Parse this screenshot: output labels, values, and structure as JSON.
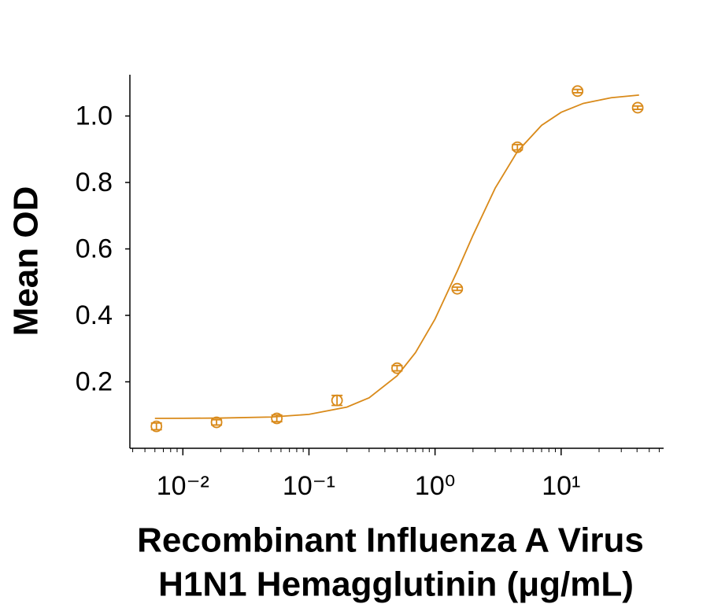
{
  "chart_data": {
    "type": "scatter",
    "xlabel": [
      "Recombinant Influenza A Virus",
      "H1N1 Hemagglutinin (μg/mL)"
    ],
    "ylabel": "Mean OD",
    "xscale": "log",
    "xlim": [
      0.0038,
      65
    ],
    "ylim": [
      0,
      1.12
    ],
    "xticks": [
      {
        "value": 0.01,
        "label": "10⁻²"
      },
      {
        "value": 0.1,
        "label": "10⁻¹"
      },
      {
        "value": 1,
        "label": "10⁰"
      },
      {
        "value": 10,
        "label": "10¹"
      }
    ],
    "xminorticks": [
      0.004,
      0.005,
      0.006,
      0.007,
      0.008,
      0.009,
      0.02,
      0.03,
      0.04,
      0.05,
      0.06,
      0.07,
      0.08,
      0.09,
      0.2,
      0.3,
      0.4,
      0.5,
      0.6,
      0.7,
      0.8,
      0.9,
      2,
      3,
      4,
      5,
      6,
      7,
      8,
      9,
      20,
      30,
      40,
      50,
      60
    ],
    "yticks": [
      0.2,
      0.4,
      0.6,
      0.8,
      {
        "value": 1,
        "label": "1.0"
      }
    ],
    "series": [
      {
        "mode": "points",
        "color": "#d98a1a",
        "x": [
          0.00617,
          0.0185,
          0.0556,
          0.167,
          0.5,
          1.5,
          4.5,
          13.5,
          40.5
        ],
        "values": [
          0.066,
          0.078,
          0.09,
          0.144,
          0.241,
          0.48,
          0.906,
          1.075,
          1.025
        ],
        "errors": [
          0.01,
          0.008,
          0.01,
          0.015,
          0.008,
          0.005,
          0.008,
          0.005,
          0.005
        ]
      },
      {
        "mode": "line",
        "color": "#d98a1a",
        "x": [
          0.006,
          0.01,
          0.02,
          0.05,
          0.1,
          0.2,
          0.3,
          0.5,
          0.7,
          1,
          1.5,
          2,
          3,
          4.5,
          7,
          10,
          15,
          25,
          41.5
        ],
        "values": [
          0.09,
          0.0903,
          0.091,
          0.094,
          0.102,
          0.124,
          0.152,
          0.218,
          0.288,
          0.389,
          0.533,
          0.641,
          0.783,
          0.893,
          0.972,
          1.011,
          1.038,
          1.055,
          1.063
        ]
      }
    ]
  }
}
